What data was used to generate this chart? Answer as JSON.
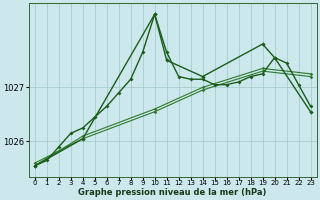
{
  "xlabel": "Graphe pression niveau de la mer (hPa)",
  "background_color": "#cce8ec",
  "line_color_dark": "#1a5c1a",
  "line_color_med": "#2d7a2d",
  "grid_color": "#9fc8cc",
  "x_ticks": [
    0,
    1,
    2,
    3,
    4,
    5,
    6,
    7,
    8,
    9,
    10,
    11,
    12,
    13,
    14,
    15,
    16,
    17,
    18,
    19,
    20,
    21,
    22,
    23
  ],
  "ylim": [
    1025.35,
    1028.55
  ],
  "yticks": [
    1026,
    1027
  ],
  "series_jagged": {
    "x": [
      0,
      1,
      2,
      3,
      4,
      5,
      6,
      7,
      8,
      9,
      10,
      11,
      12,
      13,
      14,
      15,
      16,
      17,
      18,
      19,
      20,
      21,
      22,
      23
    ],
    "y": [
      1025.55,
      1025.65,
      1025.9,
      1026.15,
      1026.25,
      1026.45,
      1026.65,
      1026.9,
      1027.15,
      1027.65,
      1028.35,
      1027.65,
      1027.2,
      1027.15,
      1027.15,
      1027.05,
      1027.05,
      1027.1,
      1027.2,
      1027.25,
      1027.55,
      1027.45,
      1027.05,
      1026.65
    ]
  },
  "series_linear1": {
    "x": [
      0,
      4,
      10,
      14,
      19,
      23
    ],
    "y": [
      1025.55,
      1026.1,
      1026.6,
      1027.0,
      1027.35,
      1027.25
    ]
  },
  "series_linear2": {
    "x": [
      0,
      4,
      10,
      14,
      19,
      23
    ],
    "y": [
      1025.6,
      1026.05,
      1026.55,
      1026.95,
      1027.3,
      1027.2
    ]
  },
  "series_peaky": {
    "x": [
      0,
      4,
      10,
      11,
      14,
      19,
      20,
      23
    ],
    "y": [
      1025.55,
      1026.05,
      1028.35,
      1027.5,
      1027.2,
      1027.8,
      1027.55,
      1026.55
    ]
  }
}
